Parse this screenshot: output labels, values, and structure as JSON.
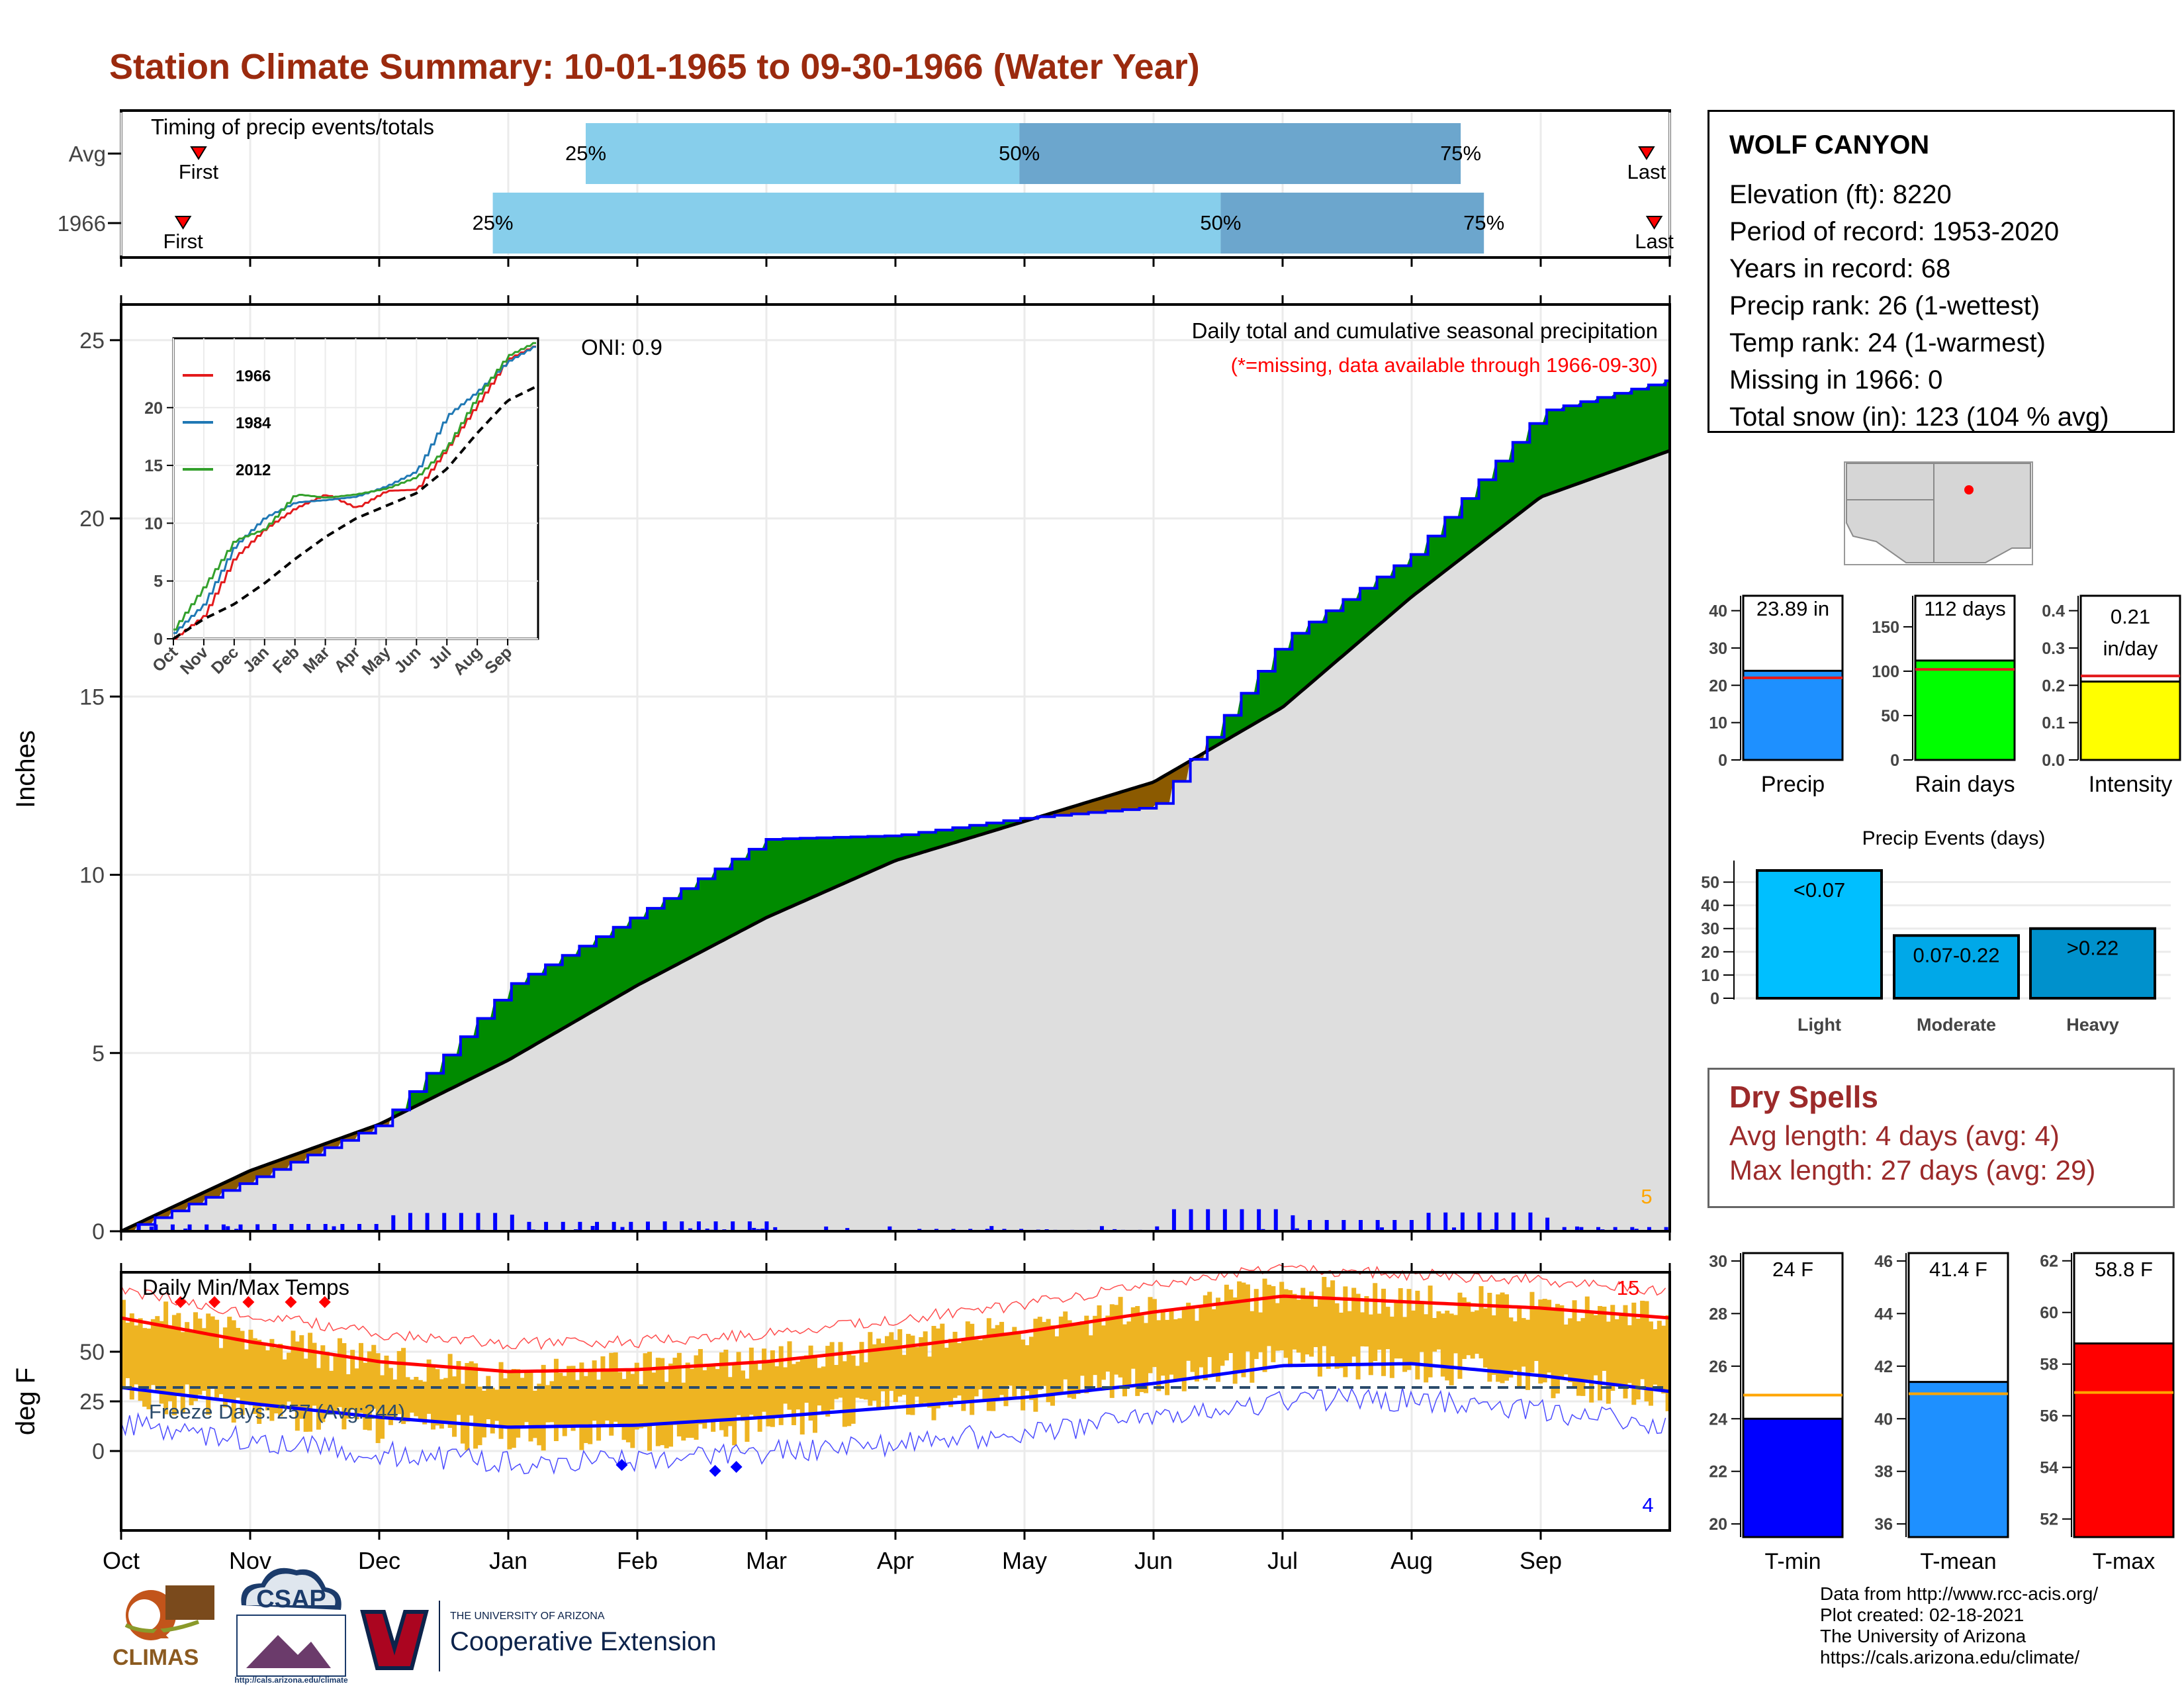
{
  "title": "Station Climate Summary: 10-01-1965 to 09-30-1966 (Water Year)",
  "timing": {
    "label": "Timing of precip events/totals",
    "rows": [
      {
        "name": "Avg",
        "first": "First",
        "last": "Last",
        "first_frac": 0.05,
        "p25": 0.3,
        "p50": 0.58,
        "p75": 0.865,
        "last_frac": 0.985
      },
      {
        "name": "1966",
        "first": "First",
        "last": "Last",
        "first_frac": 0.04,
        "p25": 0.24,
        "p50": 0.71,
        "p75": 0.88,
        "last_frac": 0.99
      }
    ],
    "pct_labels": [
      "25%",
      "50%",
      "75%"
    ]
  },
  "precip_panel": {
    "ylabel": "Inches",
    "header": "Daily total and cumulative seasonal precipitation",
    "missing_note": "(*=missing, data available through 1966-09-30)",
    "oni": "ONI: 0.9",
    "corner_count": "5",
    "yticks": [
      "0",
      "5",
      "10",
      "15",
      "20",
      "25"
    ],
    "ylim": [
      0,
      26
    ]
  },
  "inset": {
    "yticks": [
      "0",
      "5",
      "10",
      "15",
      "20"
    ],
    "months": [
      "Oct",
      "Nov",
      "Dec",
      "Jan",
      "Feb",
      "Mar",
      "Apr",
      "May",
      "Jun",
      "Jul",
      "Aug",
      "Sep"
    ],
    "legend": [
      {
        "name": "1966",
        "color": "#e31a1c"
      },
      {
        "name": "1984",
        "color": "#1f78b4"
      },
      {
        "name": "2012",
        "color": "#33a02c"
      }
    ]
  },
  "temp_panel": {
    "ylabel": "deg F",
    "label": "Daily Min/Max Temps",
    "freeze": "Freeze Days: 257 (Avg:244)",
    "count_hot": "15",
    "count_cold": "4",
    "yticks": [
      "0",
      "25",
      "50"
    ],
    "ylim": [
      -40,
      90
    ]
  },
  "months": [
    "Oct",
    "Nov",
    "Dec",
    "Jan",
    "Feb",
    "Mar",
    "Apr",
    "May",
    "Jun",
    "Jul",
    "Aug",
    "Sep"
  ],
  "station": {
    "name": "WOLF CANYON",
    "lines": [
      "Elevation (ft): 8220",
      "Period of record: 1953-2020",
      "Years in record: 68",
      "Precip rank: 26 (1-wettest)",
      "Temp rank: 24 (1-warmest)",
      "Missing in 1966: 0",
      "Total snow (in): 123 (104 % avg)"
    ]
  },
  "summary_bars": [
    {
      "name": "Precip",
      "value_label": "23.89 in",
      "value": 23.89,
      "avg": 22,
      "ymax": 44,
      "yticks": [
        "0",
        "10",
        "20",
        "30",
        "40"
      ],
      "ytick_vals": [
        0,
        10,
        20,
        30,
        40
      ],
      "color": "#1e90ff",
      "avg_color": "#e31a1c"
    },
    {
      "name": "Rain days",
      "value_label": "112 days",
      "value": 112,
      "avg": 102,
      "ymax": 185,
      "yticks": [
        "0",
        "50",
        "100",
        "150"
      ],
      "ytick_vals": [
        0,
        50,
        100,
        150
      ],
      "color": "#00ff00",
      "avg_color": "#e31a1c"
    },
    {
      "name": "Intensity",
      "value_label": "0.21 in/day",
      "value_line1": "0.21",
      "value_line2": "in/day",
      "value": 0.21,
      "avg": 0.225,
      "ymax": 0.44,
      "yticks": [
        "0.0",
        "0.1",
        "0.2",
        "0.3",
        "0.4"
      ],
      "ytick_vals": [
        0,
        0.1,
        0.2,
        0.3,
        0.4
      ],
      "color": "#ffff00",
      "avg_color": "#e31a1c"
    }
  ],
  "precip_events": {
    "title": "Precip Events (days)",
    "yticks": [
      "0",
      "10",
      "20",
      "30",
      "40",
      "50"
    ],
    "bars": [
      {
        "name": "Light",
        "label": "<0.07",
        "value": 55,
        "color": "#00bfff"
      },
      {
        "name": "Moderate",
        "label": "0.07-0.22",
        "value": 27,
        "color": "#00a8e8"
      },
      {
        "name": "Heavy",
        "label": ">0.22",
        "value": 30,
        "color": "#0091cc"
      }
    ]
  },
  "dry_spells": {
    "title": "Dry Spells",
    "avg": "Avg length: 4 days (avg: 4)",
    "max": "Max length: 27 days (avg: 29)"
  },
  "temp_bars": [
    {
      "name": "T-min",
      "value_label": "24 F",
      "value": 24,
      "avg": 24.9,
      "ymin": 19.5,
      "ymax": 30.3,
      "yticks": [
        "20",
        "22",
        "24",
        "26",
        "28",
        "30"
      ],
      "ytick_vals": [
        20,
        22,
        24,
        26,
        28,
        30
      ],
      "color": "#0000ff"
    },
    {
      "name": "T-mean",
      "value_label": "41.4 F",
      "value": 41.4,
      "avg": 40.95,
      "ymin": 35.5,
      "ymax": 46.3,
      "yticks": [
        "36",
        "38",
        "40",
        "42",
        "44",
        "46"
      ],
      "ytick_vals": [
        36,
        38,
        40,
        42,
        44,
        46
      ],
      "color": "#1e90ff"
    },
    {
      "name": "T-max",
      "value_label": "58.8 F",
      "value": 58.8,
      "avg": 56.9,
      "ymin": 51.3,
      "ymax": 62.3,
      "yticks": [
        "52",
        "54",
        "56",
        "58",
        "60",
        "62"
      ],
      "ytick_vals": [
        52,
        54,
        56,
        58,
        60,
        62
      ],
      "color": "#ff0000"
    }
  ],
  "credits": [
    "Data from http://www.rcc-acis.org/",
    "Plot created: 02-18-2021",
    "The University of Arizona",
    "https://cals.arizona.edu/climate/"
  ],
  "logos": {
    "climas": "CLIMAS",
    "csap": "CSAP",
    "csap_url": "http://cals.arizona.edu/climate",
    "ua_small": "THE UNIVERSITY OF ARIZONA",
    "coop": "Cooperative Extension"
  },
  "chart_data": [
    {
      "type": "area",
      "title": "Daily total and cumulative seasonal precipitation",
      "ylabel": "Inches",
      "ylim": [
        0,
        26
      ],
      "x": [
        "Oct",
        "Nov",
        "Dec",
        "Jan",
        "Feb",
        "Mar",
        "Apr",
        "May",
        "Jun",
        "Jul",
        "Aug",
        "Sep",
        "end"
      ],
      "series": [
        {
          "name": "1966",
          "values": [
            0.0,
            1.45,
            3.0,
            6.9,
            8.9,
            11.0,
            11.1,
            11.6,
            11.9,
            16.6,
            19.0,
            23.0,
            23.89
          ]
        },
        {
          "name": "Avg",
          "values": [
            0.0,
            1.7,
            3.0,
            4.8,
            6.9,
            8.8,
            10.4,
            11.5,
            12.6,
            14.7,
            17.8,
            20.6,
            21.9
          ]
        }
      ]
    },
    {
      "type": "line",
      "title": "",
      "x": [
        "Oct",
        "Nov",
        "Dec",
        "Jan",
        "Feb",
        "Mar",
        "Apr",
        "May",
        "Jun",
        "Jul",
        "Aug",
        "Sep",
        "end"
      ],
      "series": [
        {
          "name": "1966",
          "values": [
            0.0,
            2.0,
            7.0,
            9.5,
            11.3,
            12.5,
            11.3,
            12.8,
            12.9,
            16.5,
            20.3,
            24.2,
            25.5
          ]
        },
        {
          "name": "1984",
          "values": [
            0.5,
            3.0,
            8.0,
            10.5,
            11.8,
            12.0,
            12.3,
            13.2,
            14.5,
            19.3,
            21.4,
            24.0,
            25.5
          ]
        },
        {
          "name": "2012",
          "values": [
            0.8,
            4.5,
            8.5,
            9.5,
            12.5,
            12.2,
            12.5,
            13.0,
            14.0,
            16.6,
            21.0,
            24.5,
            25.8
          ]
        },
        {
          "name": "Avg",
          "values": [
            0.0,
            1.7,
            3.0,
            4.8,
            6.9,
            8.8,
            10.4,
            11.5,
            12.6,
            14.7,
            17.8,
            20.6,
            21.9
          ]
        }
      ]
    },
    {
      "type": "line",
      "title": "Daily Min/Max Temps",
      "ylabel": "deg F",
      "ylim": [
        -40,
        90
      ],
      "x": [
        "Oct",
        "Nov",
        "Dec",
        "Jan",
        "Feb",
        "Mar",
        "Apr",
        "May",
        "Jun",
        "Jul",
        "Aug",
        "Sep",
        "end"
      ],
      "series": [
        {
          "name": "Avg max",
          "values": [
            67,
            55,
            45,
            40,
            41,
            45,
            52,
            60,
            70,
            78,
            75,
            72,
            67
          ]
        },
        {
          "name": "Avg min",
          "values": [
            32,
            24,
            17,
            12,
            13,
            17,
            22,
            27,
            34,
            43,
            44,
            38,
            30
          ]
        },
        {
          "name": "Max",
          "values": [
            72,
            56,
            44,
            38,
            42,
            46,
            54,
            62,
            72,
            80,
            76,
            73,
            65
          ]
        },
        {
          "name": "Min",
          "values": [
            30,
            22,
            12,
            8,
            6,
            14,
            22,
            26,
            36,
            45,
            44,
            36,
            28
          ]
        }
      ],
      "freeze_line": 32
    }
  ]
}
